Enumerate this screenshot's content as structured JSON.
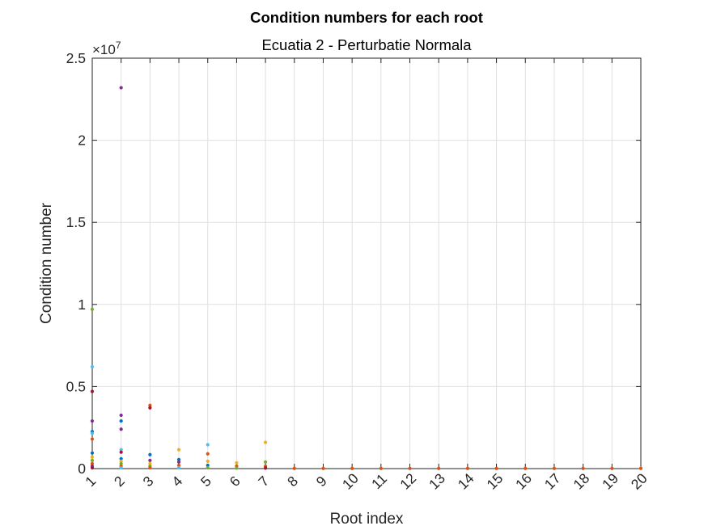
{
  "chart_data": {
    "type": "scatter",
    "title": "Condition numbers for each root",
    "subtitle": "Ecuatia 2 - Perturbatie Normala",
    "xlabel": "Root index",
    "ylabel": "Condition number",
    "xlim": [
      1,
      20
    ],
    "ylim": [
      0,
      25000000
    ],
    "y_exponent_label": "×10",
    "y_exponent_value": "7",
    "x_ticks": [
      "1",
      "2",
      "3",
      "4",
      "5",
      "6",
      "7",
      "8",
      "9",
      "10",
      "11",
      "12",
      "13",
      "14",
      "15",
      "16",
      "17",
      "18",
      "19",
      "20"
    ],
    "y_ticks": [
      {
        "value": 0,
        "label": "0"
      },
      {
        "value": 5000000,
        "label": "0.5"
      },
      {
        "value": 10000000,
        "label": "1"
      },
      {
        "value": 15000000,
        "label": "1.5"
      },
      {
        "value": 20000000,
        "label": "2"
      },
      {
        "value": 25000000,
        "label": "2.5"
      }
    ],
    "grid": true,
    "palette": [
      "#0072BD",
      "#D95319",
      "#EDB120",
      "#7E2F8E",
      "#77AC30",
      "#4DBEEE",
      "#A2142F"
    ],
    "points": [
      {
        "x": 1,
        "y": 9700000,
        "color": "#77AC30"
      },
      {
        "x": 1,
        "y": 6200000,
        "color": "#4DBEEE"
      },
      {
        "x": 1,
        "y": 4700000,
        "color": "#A2142F"
      },
      {
        "x": 1,
        "y": 2900000,
        "color": "#7E2F8E"
      },
      {
        "x": 1,
        "y": 2250000,
        "color": "#0072BD"
      },
      {
        "x": 1,
        "y": 2150000,
        "color": "#4DBEEE"
      },
      {
        "x": 1,
        "y": 1800000,
        "color": "#D95319"
      },
      {
        "x": 1,
        "y": 950000,
        "color": "#0072BD"
      },
      {
        "x": 1,
        "y": 700000,
        "color": "#EDB120"
      },
      {
        "x": 1,
        "y": 500000,
        "color": "#77AC30"
      },
      {
        "x": 1,
        "y": 300000,
        "color": "#D95319"
      },
      {
        "x": 1,
        "y": 150000,
        "color": "#7E2F8E"
      },
      {
        "x": 1,
        "y": 50000,
        "color": "#A2142F"
      },
      {
        "x": 2,
        "y": 23200000,
        "color": "#7E2F8E"
      },
      {
        "x": 2,
        "y": 3250000,
        "color": "#7E2F8E"
      },
      {
        "x": 2,
        "y": 2900000,
        "color": "#0072BD"
      },
      {
        "x": 2,
        "y": 2400000,
        "color": "#7E2F8E"
      },
      {
        "x": 2,
        "y": 1150000,
        "color": "#4DBEEE"
      },
      {
        "x": 2,
        "y": 1000000,
        "color": "#A2142F"
      },
      {
        "x": 2,
        "y": 600000,
        "color": "#0072BD"
      },
      {
        "x": 2,
        "y": 450000,
        "color": "#EDB120"
      },
      {
        "x": 2,
        "y": 300000,
        "color": "#77AC30"
      },
      {
        "x": 2,
        "y": 150000,
        "color": "#D95319"
      },
      {
        "x": 2,
        "y": 50000,
        "color": "#4DBEEE"
      },
      {
        "x": 3,
        "y": 3850000,
        "color": "#D95319"
      },
      {
        "x": 3,
        "y": 3700000,
        "color": "#A2142F"
      },
      {
        "x": 3,
        "y": 850000,
        "color": "#0072BD"
      },
      {
        "x": 3,
        "y": 500000,
        "color": "#7E2F8E"
      },
      {
        "x": 3,
        "y": 300000,
        "color": "#EDB120"
      },
      {
        "x": 3,
        "y": 150000,
        "color": "#77AC30"
      },
      {
        "x": 3,
        "y": 50000,
        "color": "#D95319"
      },
      {
        "x": 4,
        "y": 1150000,
        "color": "#EDB120"
      },
      {
        "x": 4,
        "y": 550000,
        "color": "#0072BD"
      },
      {
        "x": 4,
        "y": 400000,
        "color": "#7E2F8E"
      },
      {
        "x": 4,
        "y": 200000,
        "color": "#D95319"
      },
      {
        "x": 4,
        "y": 50000,
        "color": "#4DBEEE"
      },
      {
        "x": 5,
        "y": 1450000,
        "color": "#4DBEEE"
      },
      {
        "x": 5,
        "y": 900000,
        "color": "#D95319"
      },
      {
        "x": 5,
        "y": 450000,
        "color": "#EDB120"
      },
      {
        "x": 5,
        "y": 200000,
        "color": "#0072BD"
      },
      {
        "x": 5,
        "y": 50000,
        "color": "#77AC30"
      },
      {
        "x": 6,
        "y": 350000,
        "color": "#EDB120"
      },
      {
        "x": 6,
        "y": 150000,
        "color": "#D95319"
      },
      {
        "x": 6,
        "y": 30000,
        "color": "#77AC30"
      },
      {
        "x": 7,
        "y": 1600000,
        "color": "#EDB120"
      },
      {
        "x": 7,
        "y": 400000,
        "color": "#77AC30"
      },
      {
        "x": 7,
        "y": 150000,
        "color": "#D95319"
      },
      {
        "x": 7,
        "y": 30000,
        "color": "#A2142F"
      },
      {
        "x": 8,
        "y": 10000,
        "color": "#D95319"
      },
      {
        "x": 9,
        "y": 10000,
        "color": "#D95319"
      },
      {
        "x": 10,
        "y": 10000,
        "color": "#D95319"
      },
      {
        "x": 11,
        "y": 10000,
        "color": "#D95319"
      },
      {
        "x": 12,
        "y": 10000,
        "color": "#D95319"
      },
      {
        "x": 13,
        "y": 10000,
        "color": "#D95319"
      },
      {
        "x": 14,
        "y": 10000,
        "color": "#D95319"
      },
      {
        "x": 15,
        "y": 10000,
        "color": "#D95319"
      },
      {
        "x": 16,
        "y": 10000,
        "color": "#D95319"
      },
      {
        "x": 17,
        "y": 10000,
        "color": "#D95319"
      },
      {
        "x": 18,
        "y": 10000,
        "color": "#D95319"
      },
      {
        "x": 19,
        "y": 10000,
        "color": "#D95319"
      },
      {
        "x": 20,
        "y": 10000,
        "color": "#D95319"
      }
    ]
  }
}
